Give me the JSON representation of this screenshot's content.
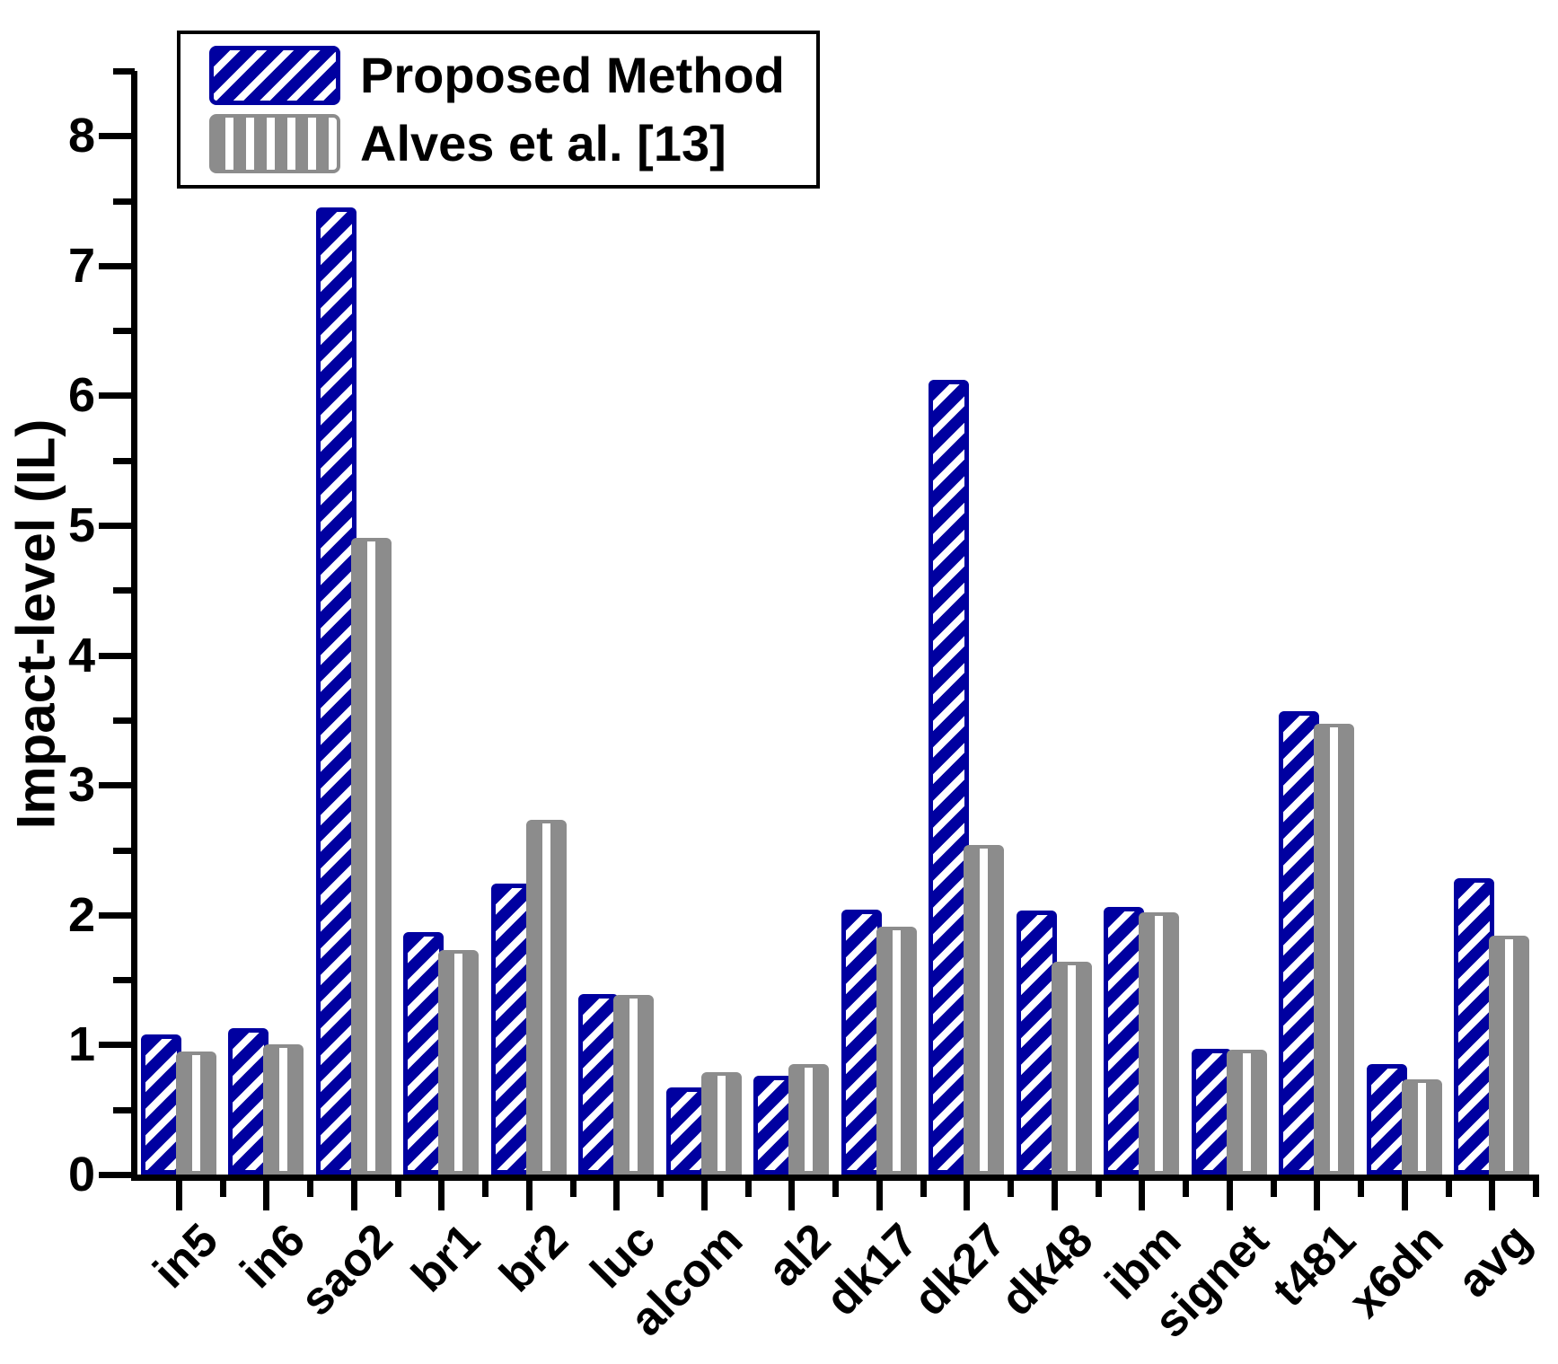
{
  "chart_data": {
    "type": "bar",
    "title": "",
    "ylabel": "Impact-level (IL)",
    "xlabel": "",
    "ylim": [
      0,
      8.5
    ],
    "yticks": [
      0,
      1,
      2,
      3,
      4,
      5,
      6,
      7,
      8
    ],
    "minor_tick_step": 0.5,
    "grid": false,
    "legend_position": "top-left",
    "categories": [
      "in5",
      "in6",
      "sao2",
      "br1",
      "br2",
      "luc",
      "alcom",
      "al2",
      "dk17",
      "dk27",
      "dk48",
      "ibm",
      "signet",
      "t481",
      "x6dn",
      "avg"
    ],
    "series": [
      {
        "name": "Proposed Method",
        "color": "#0000A0",
        "hatch": "diagonal",
        "values": [
          1.08,
          1.13,
          7.45,
          1.87,
          2.24,
          1.39,
          0.67,
          0.76,
          2.04,
          6.12,
          2.03,
          2.06,
          0.97,
          3.57,
          0.85,
          2.28
        ]
      },
      {
        "name": "Alves et al. [13]",
        "color": "#8C8C8C",
        "hatch": "vertical",
        "values": [
          0.95,
          1.0,
          4.9,
          1.73,
          2.73,
          1.38,
          0.79,
          0.85,
          1.91,
          2.54,
          1.64,
          2.02,
          0.96,
          3.47,
          0.73,
          1.84
        ]
      }
    ]
  }
}
